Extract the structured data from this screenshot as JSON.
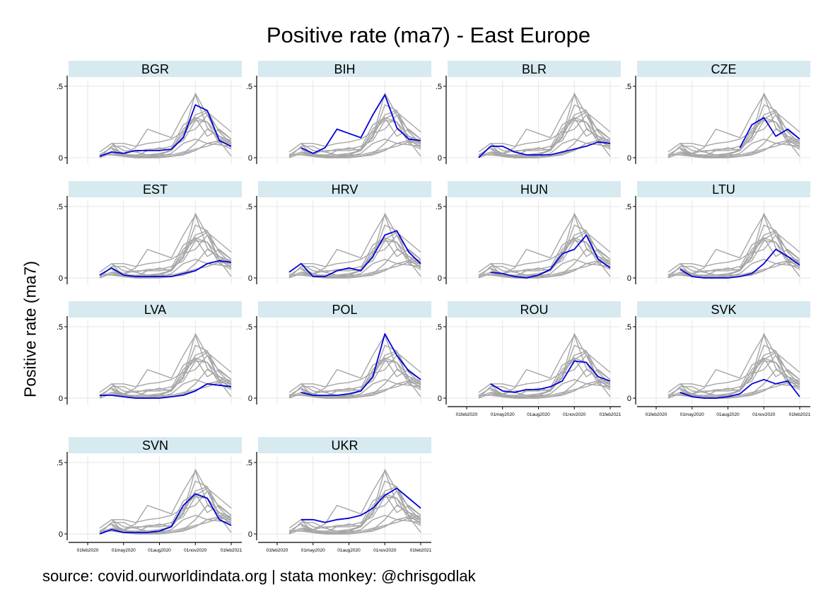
{
  "title": "Positive rate (ma7) - East Europe",
  "ylabel": "Positive rate (ma7)",
  "source": "source: covid.ourworldindata.org | stata monkey: @chrisgodlak",
  "colors": {
    "highlight": "#0000dd",
    "background_series": "#a6a6a6",
    "strip": "#d6eaf0",
    "grid": "#e6e6e6"
  },
  "chart_data": {
    "type": "line",
    "layout": "small multiples 4 columns; each panel highlights one country in blue over all countries in gray",
    "ytick_labels": [
      ".5",
      "0"
    ],
    "xtick_labels": [
      "01feb2020",
      "01may2020",
      "01aug2020",
      "01nov2020",
      "01feb2021"
    ],
    "x": [
      "2020-02-01",
      "2020-03-01",
      "2020-04-01",
      "2020-05-01",
      "2020-06-01",
      "2020-07-01",
      "2020-08-01",
      "2020-09-01",
      "2020-10-01",
      "2020-11-01",
      "2020-12-01",
      "2021-01-01",
      "2021-02-01"
    ],
    "ylim": [
      0,
      0.5
    ],
    "series": [
      {
        "name": "BGR",
        "values": [
          null,
          0.01,
          0.04,
          0.03,
          0.05,
          0.05,
          0.05,
          0.06,
          0.14,
          0.37,
          0.33,
          0.12,
          0.08
        ]
      },
      {
        "name": "BIH",
        "values": [
          null,
          null,
          0.07,
          0.03,
          0.07,
          0.2,
          0.17,
          0.14,
          0.3,
          0.44,
          0.21,
          0.13,
          0.12
        ]
      },
      {
        "name": "BLR",
        "values": [
          null,
          0.0,
          0.08,
          0.08,
          0.04,
          0.02,
          0.02,
          0.02,
          0.04,
          0.06,
          0.08,
          0.11,
          0.1
        ]
      },
      {
        "name": "CZE",
        "values": [
          null,
          null,
          null,
          null,
          null,
          null,
          null,
          0.07,
          0.23,
          0.28,
          0.15,
          0.2,
          0.13
        ]
      },
      {
        "name": "EST",
        "values": [
          null,
          0.02,
          0.07,
          0.02,
          0.01,
          0.01,
          0.01,
          0.01,
          0.03,
          0.05,
          0.1,
          0.12,
          0.11
        ]
      },
      {
        "name": "HRV",
        "values": [
          null,
          0.04,
          0.1,
          0.01,
          0.01,
          0.05,
          0.07,
          0.05,
          0.15,
          0.3,
          0.33,
          0.18,
          0.1
        ]
      },
      {
        "name": "HUN",
        "values": [
          null,
          null,
          0.04,
          0.03,
          0.01,
          0.0,
          0.02,
          0.06,
          0.17,
          0.2,
          0.3,
          0.13,
          0.07
        ]
      },
      {
        "name": "LTU",
        "values": [
          null,
          null,
          0.06,
          0.01,
          0.0,
          0.0,
          0.0,
          0.01,
          0.03,
          0.1,
          0.2,
          0.15,
          0.09
        ]
      },
      {
        "name": "LVA",
        "values": [
          null,
          0.02,
          0.02,
          0.01,
          0.0,
          0.0,
          0.0,
          0.01,
          0.02,
          0.05,
          0.1,
          0.09,
          0.08
        ]
      },
      {
        "name": "POL",
        "values": [
          null,
          null,
          0.04,
          0.02,
          0.02,
          0.02,
          0.03,
          0.05,
          0.15,
          0.45,
          0.3,
          0.19,
          0.13
        ]
      },
      {
        "name": "ROU",
        "values": [
          null,
          null,
          0.1,
          0.05,
          0.04,
          0.06,
          0.06,
          0.08,
          0.12,
          0.26,
          0.25,
          0.15,
          0.12
        ]
      },
      {
        "name": "SVK",
        "values": [
          null,
          null,
          0.04,
          0.01,
          0.0,
          0.0,
          0.01,
          0.03,
          0.1,
          0.13,
          0.1,
          0.12,
          0.01
        ]
      },
      {
        "name": "SVN",
        "values": [
          null,
          0.0,
          0.03,
          0.01,
          0.01,
          0.01,
          0.02,
          0.05,
          0.2,
          0.28,
          0.25,
          0.1,
          0.06
        ]
      },
      {
        "name": "UKR",
        "values": [
          null,
          null,
          0.1,
          0.1,
          0.08,
          0.1,
          0.11,
          0.13,
          0.18,
          0.27,
          0.32,
          0.25,
          0.18
        ]
      }
    ]
  }
}
